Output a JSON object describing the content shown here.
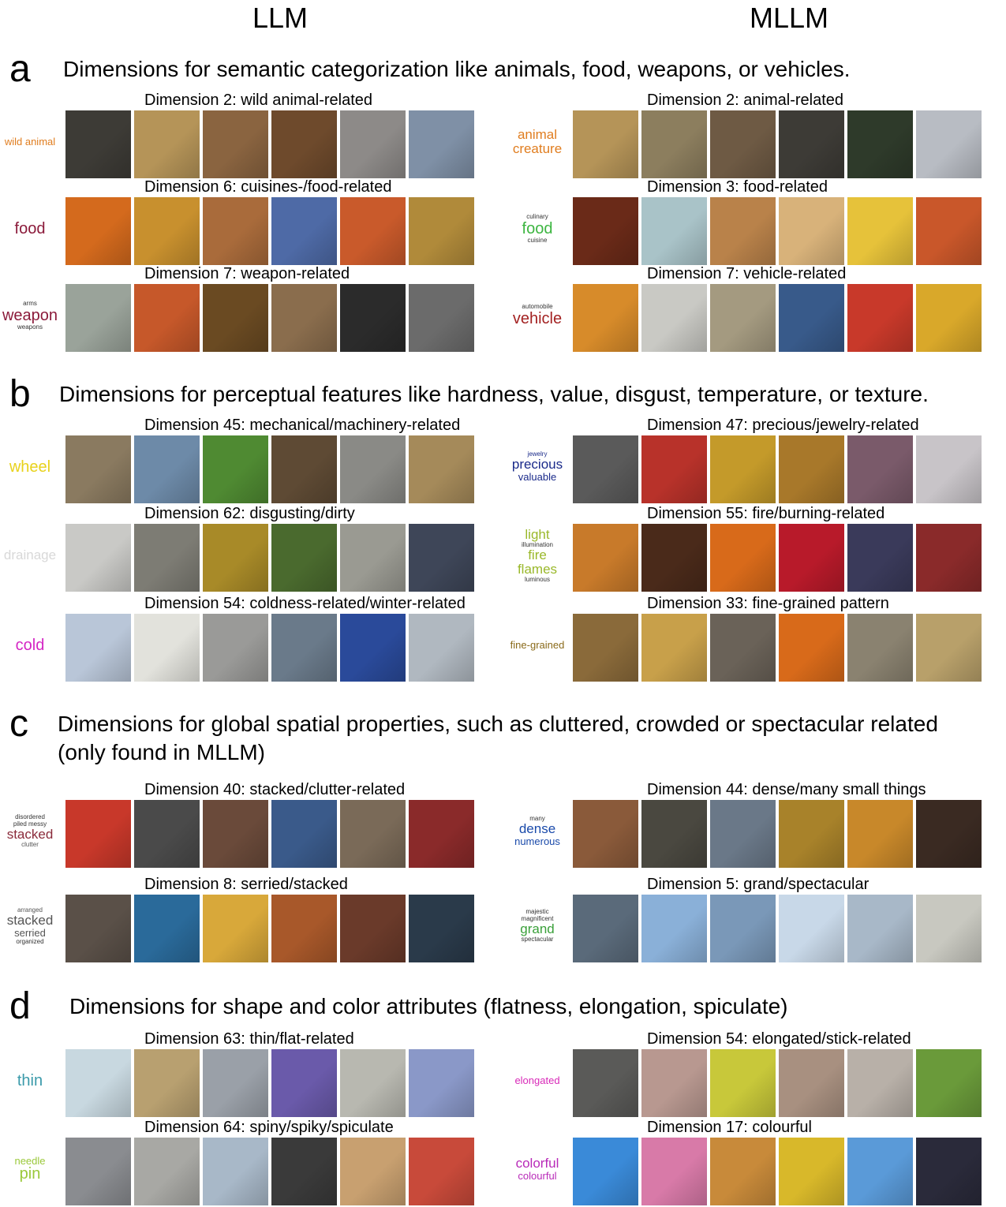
{
  "columns": {
    "left": "LLM",
    "right": "MLLM"
  },
  "sections": [
    {
      "letter": "a",
      "title": "Dimensions for semantic categorization like animals, food, weapons, or vehicles.",
      "left": [
        {
          "title": "Dimension 2: wild animal-related",
          "words": [
            {
              "text": "wild animal",
              "color": "#e07d1f",
              "size": "sm"
            }
          ],
          "colors": [
            "#3d3b36",
            "#b59458",
            "#8a6440",
            "#6e4a2c",
            "#8d8a88",
            "#7f90a6"
          ]
        },
        {
          "title": "Dimension 6: cuisines-/food-related",
          "words": [
            {
              "text": "food",
              "color": "#8b1a3a",
              "size": "lg"
            }
          ],
          "colors": [
            "#d46a1d",
            "#c8902e",
            "#a96b3b",
            "#4e6aa6",
            "#c95a2b",
            "#b08a3a"
          ]
        },
        {
          "title": "Dimension 7: weapon-related",
          "words": [
            {
              "text": "arms",
              "color": "#333333",
              "size": "xs"
            },
            {
              "text": "weapon",
              "color": "#8b1a3a",
              "size": "lg"
            },
            {
              "text": "weapons",
              "color": "#333333",
              "size": "xs"
            }
          ],
          "colors": [
            "#9aa39a",
            "#c6582a",
            "#6a4a22",
            "#8a6d4d",
            "#2b2b2b",
            "#6b6b6b"
          ]
        }
      ],
      "right": [
        {
          "title": "Dimension 2: animal-related",
          "words": [
            {
              "text": "animal",
              "color": "#e07d1f",
              "size": "md"
            },
            {
              "text": "creature",
              "color": "#e07d1f",
              "size": "md"
            }
          ],
          "colors": [
            "#b59458",
            "#8c7e5e",
            "#6e5a44",
            "#3d3b36",
            "#2e3a2a",
            "#b8bcc3"
          ]
        },
        {
          "title": "Dimension 3: food-related",
          "words": [
            {
              "text": "culinary",
              "color": "#333333",
              "size": "xs"
            },
            {
              "text": "food",
              "color": "#3cb540",
              "size": "lg"
            },
            {
              "text": "cuisine",
              "color": "#333333",
              "size": "xs"
            }
          ],
          "colors": [
            "#6a2a18",
            "#a9c3c8",
            "#b9824a",
            "#d8b27a",
            "#e6c23a",
            "#c9572a"
          ]
        },
        {
          "title": "Dimension 7: vehicle-related",
          "words": [
            {
              "text": "automobile",
              "color": "#333333",
              "size": "xs"
            },
            {
              "text": "vehicle",
              "color": "#a32222",
              "size": "lg"
            }
          ],
          "colors": [
            "#d78b2a",
            "#c9c9c4",
            "#a49a80",
            "#385a8a",
            "#c8392a",
            "#d9a82a"
          ]
        }
      ]
    },
    {
      "letter": "b",
      "title": "Dimensions for perceptual features like hardness, value, disgust, temperature, or texture.",
      "left": [
        {
          "title": "Dimension 45: mechanical/machinery-related",
          "words": [
            {
              "text": "wheel",
              "color": "#e8d21c",
              "size": "lg"
            }
          ],
          "colors": [
            "#8a7a60",
            "#6d8aa8",
            "#4f8a32",
            "#5e4a34",
            "#8a8a86",
            "#a58a5a"
          ]
        },
        {
          "title": "Dimension 62: disgusting/dirty",
          "words": [
            {
              "text": "drainage",
              "color": "#d8d8d8",
              "size": "md"
            }
          ],
          "colors": [
            "#c9c9c6",
            "#7d7c74",
            "#a88a28",
            "#4a6a2e",
            "#9a9a92",
            "#3e4658"
          ]
        },
        {
          "title": "Dimension 54: coldness-related/winter-related",
          "words": [
            {
              "text": "cold",
              "color": "#d426c4",
              "size": "lg"
            }
          ],
          "colors": [
            "#b9c6d8",
            "#e2e2dc",
            "#9a9a98",
            "#6a7a8a",
            "#2a4a9a",
            "#b0b8c0"
          ]
        }
      ],
      "right": [
        {
          "title": "Dimension 47: precious/jewelry-related",
          "words": [
            {
              "text": "jewelry",
              "color": "#1a2a8a",
              "size": "xs"
            },
            {
              "text": "precious",
              "color": "#1a2a8a",
              "size": "md"
            },
            {
              "text": "valuable",
              "color": "#1a2a8a",
              "size": "sm"
            }
          ],
          "colors": [
            "#5a5a5a",
            "#b8322a",
            "#c49a2a",
            "#a8782a",
            "#7a5a6a",
            "#c8c4c8"
          ]
        },
        {
          "title": "Dimension 55: fire/burning-related",
          "words": [
            {
              "text": "light",
              "color": "#9ab82a",
              "size": "md"
            },
            {
              "text": "illumination",
              "color": "#333333",
              "size": "xs"
            },
            {
              "text": "fire",
              "color": "#9ab82a",
              "size": "md"
            },
            {
              "text": "flames",
              "color": "#9ab82a",
              "size": "md"
            },
            {
              "text": "luminous",
              "color": "#333333",
              "size": "xs"
            }
          ],
          "colors": [
            "#c87a2a",
            "#4a2a1a",
            "#d86a1a",
            "#b81a2a",
            "#3a3a5a",
            "#8a2a2a"
          ]
        },
        {
          "title": "Dimension 33: fine-grained pattern",
          "words": [
            {
              "text": "fine-grained",
              "color": "#8a6a1a",
              "size": "sm"
            }
          ],
          "colors": [
            "#8a6a3a",
            "#c8a04a",
            "#6a6258",
            "#d86a1a",
            "#8a8270",
            "#b8a06a"
          ]
        }
      ]
    },
    {
      "letter": "c",
      "title": "Dimensions for global spatial properties, such as cluttered, crowded or spectacular related",
      "title2": "(only found in MLLM)",
      "left": [
        {
          "title": "Dimension 40: stacked/clutter-related",
          "words": [
            {
              "text": "disordered",
              "color": "#333333",
              "size": "xs"
            },
            {
              "text": "piled messy",
              "color": "#333333",
              "size": "xs"
            },
            {
              "text": "stacked",
              "color": "#8a2a3a",
              "size": "md"
            },
            {
              "text": "clutter",
              "color": "#555555",
              "size": "xs"
            }
          ],
          "colors": [
            "#c8382a",
            "#4a4a4a",
            "#6a4a3a",
            "#3a5a8a",
            "#7a6a58",
            "#8a2a2a"
          ]
        },
        {
          "title": "Dimension 8: serried/stacked",
          "words": [
            {
              "text": "arranged",
              "color": "#555555",
              "size": "xs"
            },
            {
              "text": "stacked",
              "color": "#555555",
              "size": "md"
            },
            {
              "text": "serried",
              "color": "#555555",
              "size": "sm"
            },
            {
              "text": "organized",
              "color": "#333333",
              "size": "xs"
            }
          ],
          "colors": [
            "#5a5048",
            "#2a6a9a",
            "#d8a83a",
            "#a8582a",
            "#6a3a2a",
            "#2a3a4a"
          ]
        }
      ],
      "right": [
        {
          "title": "Dimension 44: dense/many small things",
          "words": [
            {
              "text": "many",
              "color": "#333333",
              "size": "xs"
            },
            {
              "text": "dense",
              "color": "#1a4aaa",
              "size": "md"
            },
            {
              "text": "numerous",
              "color": "#1a4aaa",
              "size": "sm"
            }
          ],
          "colors": [
            "#8a5a3a",
            "#4a4840",
            "#6a7888",
            "#a8822a",
            "#c8882a",
            "#3a2a22"
          ]
        },
        {
          "title": "Dimension 5: grand/spectacular",
          "words": [
            {
              "text": "majestic",
              "color": "#333333",
              "size": "xs"
            },
            {
              "text": "magnificent",
              "color": "#333333",
              "size": "xs"
            },
            {
              "text": "grand",
              "color": "#3aa03a",
              "size": "md"
            },
            {
              "text": "spectacular",
              "color": "#333333",
              "size": "xs"
            }
          ],
          "colors": [
            "#5a6a7a",
            "#8ab0d8",
            "#7a98b8",
            "#c8d8e8",
            "#a8b8c8",
            "#c8c8c0"
          ]
        }
      ]
    },
    {
      "letter": "d",
      "title": "Dimensions for shape and color attributes (flatness, elongation, spiculate)",
      "left": [
        {
          "title": "Dimension 63: thin/flat-related",
          "words": [
            {
              "text": "thin",
              "color": "#3a9aaa",
              "size": "lg"
            }
          ],
          "colors": [
            "#c8d8e0",
            "#b8a070",
            "#9aa0a8",
            "#6a5aaa",
            "#b8b8b0",
            "#8a98c8"
          ]
        },
        {
          "title": "Dimension 64: spiny/spiky/spiculate",
          "words": [
            {
              "text": "needle",
              "color": "#9ac83a",
              "size": "sm"
            },
            {
              "text": "pin",
              "color": "#9ac83a",
              "size": "lg"
            }
          ],
          "colors": [
            "#8a8c90",
            "#a8a8a4",
            "#a8b8c8",
            "#3a3a3a",
            "#c8a070",
            "#c84a3a"
          ]
        }
      ],
      "right": [
        {
          "title": "Dimension 54: elongated/stick-related",
          "words": [
            {
              "text": "elongated",
              "color": "#d82ab8",
              "size": "sm"
            }
          ],
          "colors": [
            "#5a5a58",
            "#b89890",
            "#c8c83a",
            "#a89080",
            "#b8b0a8",
            "#6a9a3a"
          ]
        },
        {
          "title": "Dimension 17: colourful",
          "words": [
            {
              "text": "colorful",
              "color": "#b82ab8",
              "size": "md"
            },
            {
              "text": "colourful",
              "color": "#b82ab8",
              "size": "sm"
            }
          ],
          "colors": [
            "#3a8ad8",
            "#d87aa8",
            "#c88a3a",
            "#d8b82a",
            "#5a9ad8",
            "#2a2a3a"
          ]
        }
      ]
    }
  ]
}
